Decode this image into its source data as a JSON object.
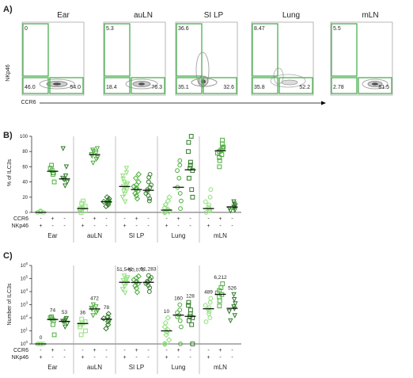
{
  "panel_a": {
    "letter": "A)",
    "ylabel": "NKp46",
    "xlabel": "CCR6",
    "plots": [
      {
        "tissue": "Ear",
        "q_ul": "0",
        "q_ll": "46.0",
        "q_lr": "54.0"
      },
      {
        "tissue": "auLN",
        "q_ul": "5.3",
        "q_ll": "18.4",
        "q_lr": "76.3"
      },
      {
        "tissue": "SI LP",
        "q_ul": "36.6",
        "q_ll": "35.1",
        "q_lr": "32.6"
      },
      {
        "tissue": "Lung",
        "q_ul": "8.47",
        "q_ll": "35.8",
        "q_lr": "52.2"
      },
      {
        "tissue": "mLN",
        "q_ul": "5.5",
        "q_ll": "2.78",
        "q_lr": "81.5"
      }
    ]
  },
  "row_labels": {
    "ccr6": "CCR6",
    "nkp46": "NKp46"
  },
  "signs": {
    "ccr6": [
      "-",
      "+",
      "-"
    ],
    "nkp46": [
      "+",
      "-",
      "-"
    ]
  },
  "chart_data": [
    {
      "type": "scatter",
      "letter": "B)",
      "ylabel": "% of ILC3s",
      "ylim": [
        0,
        100
      ],
      "yticks": [
        "0",
        "20",
        "40",
        "60",
        "80",
        "100"
      ],
      "categories": [
        "Ear",
        "auLN",
        "SI LP",
        "Lung",
        "mLN"
      ],
      "groups": [
        {
          "tissue": "Ear",
          "subsets": [
            {
              "median": 0,
              "values": [
                0,
                0,
                0,
                1,
                1,
                2
              ]
            },
            {
              "median": 54,
              "values": [
                40,
                50,
                52,
                55,
                58,
                62
              ]
            },
            {
              "median": 44,
              "values": [
                35,
                40,
                43,
                45,
                48,
                60,
                84
              ]
            }
          ]
        },
        {
          "tissue": "auLN",
          "subsets": [
            {
              "median": 5,
              "values": [
                0,
                2,
                4,
                5,
                6,
                8,
                12,
                15
              ]
            },
            {
              "median": 76,
              "values": [
                65,
                70,
                72,
                74,
                76,
                78,
                80,
                82,
                84
              ]
            },
            {
              "median": 14,
              "values": [
                8,
                10,
                12,
                13,
                14,
                15,
                16,
                18,
                20
              ]
            }
          ]
        },
        {
          "tissue": "SI LP",
          "subsets": [
            {
              "median": 34,
              "values": [
                14,
                20,
                24,
                28,
                30,
                32,
                34,
                36,
                38,
                40,
                44,
                48,
                52,
                58
              ]
            },
            {
              "median": 30,
              "values": [
                18,
                22,
                25,
                28,
                30,
                32,
                34,
                36,
                40,
                45,
                50
              ]
            },
            {
              "median": 29,
              "values": [
                15,
                18,
                22,
                25,
                28,
                30,
                33,
                36,
                40,
                46,
                50
              ]
            }
          ]
        },
        {
          "tissue": "Lung",
          "subsets": [
            {
              "median": 3,
              "values": [
                0,
                0,
                1,
                2,
                3,
                4,
                6,
                10,
                15,
                20
              ]
            },
            {
              "median": 33,
              "values": [
                5,
                15,
                25,
                33,
                45,
                55,
                62,
                68
              ]
            },
            {
              "median": 56,
              "values": [
                20,
                30,
                45,
                55,
                58,
                62,
                66,
                80,
                92,
                100
              ]
            }
          ]
        },
        {
          "tissue": "mLN",
          "subsets": [
            {
              "median": 5,
              "values": [
                0,
                2,
                3,
                5,
                7,
                10,
                14,
                20,
                30
              ]
            },
            {
              "median": 81,
              "values": [
                60,
                68,
                72,
                76,
                78,
                80,
                82,
                84,
                86,
                90,
                95
              ]
            },
            {
              "median": 7,
              "values": [
                2,
                3,
                5,
                6,
                7,
                9,
                11,
                14
              ]
            }
          ]
        }
      ]
    },
    {
      "type": "scatter",
      "letter": "C)",
      "ylabel": "Number of ILC3s",
      "yscale": "log",
      "ylim_exp": [
        0,
        6
      ],
      "yticks_exp": [
        "0",
        "1",
        "2",
        "3",
        "4",
        "5",
        "6"
      ],
      "categories": [
        "Ear",
        "auLN",
        "SI LP",
        "Lung",
        "mLN"
      ],
      "groups": [
        {
          "tissue": "Ear",
          "subsets": [
            {
              "label": "0",
              "median": 1,
              "values": [
                1,
                1,
                1,
                1,
                1
              ]
            },
            {
              "label": "74",
              "median": 74,
              "values": [
                5,
                30,
                60,
                80,
                100,
                120
              ]
            },
            {
              "label": "53",
              "median": 53,
              "values": [
                20,
                35,
                50,
                55,
                70,
                90
              ]
            }
          ]
        },
        {
          "tissue": "auLN",
          "subsets": [
            {
              "label": "36",
              "median": 36,
              "values": [
                5,
                10,
                20,
                30,
                40,
                50,
                80
              ]
            },
            {
              "label": "472",
              "median": 472,
              "values": [
                150,
                250,
                350,
                450,
                550,
                700,
                1000
              ]
            },
            {
              "label": "78",
              "median": 78,
              "values": [
                15,
                30,
                50,
                70,
                90,
                120,
                200
              ]
            }
          ]
        },
        {
          "tissue": "SI LP",
          "subsets": [
            {
              "label": "51,540",
              "median": 51540,
              "values": [
                8000,
                15000,
                25000,
                35000,
                45000,
                55000,
                70000,
                90000,
                120000,
                160000
              ]
            },
            {
              "label": "50,070",
              "median": 50070,
              "values": [
                9000,
                18000,
                28000,
                40000,
                50000,
                60000,
                80000,
                110000,
                150000
              ]
            },
            {
              "label": "51,283",
              "median": 51283,
              "values": [
                10000,
                20000,
                30000,
                42000,
                50000,
                62000,
                85000,
                120000,
                170000
              ]
            }
          ]
        },
        {
          "tissue": "Lung",
          "subsets": [
            {
              "label": "10",
              "median": 10,
              "values": [
                1,
                1,
                2,
                5,
                8,
                12,
                20,
                40,
                100
              ]
            },
            {
              "label": "160",
              "median": 160,
              "values": [
                1,
                20,
                60,
                120,
                160,
                250,
                400,
                1000
              ]
            },
            {
              "label": "128",
              "median": 128,
              "values": [
                1,
                30,
                60,
                100,
                130,
                200,
                400,
                900,
                1500
              ]
            }
          ]
        },
        {
          "tissue": "mLN",
          "subsets": [
            {
              "label": "489",
              "median": 489,
              "values": [
                50,
                100,
                200,
                300,
                450,
                600,
                900,
                1500,
                3000
              ]
            },
            {
              "label": "6,212",
              "median": 6212,
              "values": [
                800,
                2000,
                4000,
                6000,
                8000,
                12000,
                20000,
                40000
              ]
            },
            {
              "label": "526",
              "median": 526,
              "values": [
                60,
                150,
                300,
                500,
                700,
                1200,
                2500,
                6000
              ]
            }
          ]
        }
      ]
    }
  ],
  "colors": {
    "gate": "#4caf50",
    "subset": [
      "#8ee07a",
      "#4cae3c",
      "#2e7a25"
    ],
    "median": "#111111",
    "axis": "#333333"
  }
}
